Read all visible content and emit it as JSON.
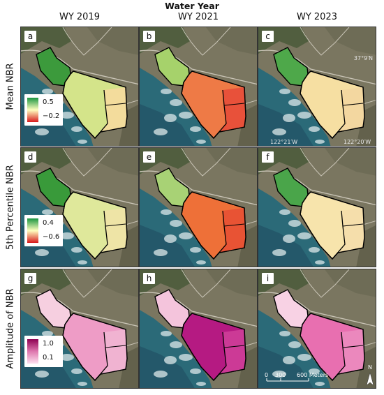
{
  "super_title": "Water Year",
  "columns": [
    "WY 2019",
    "WY 2021",
    "WY 2023"
  ],
  "rows": [
    "Mean NBR",
    "5th Percentile NBR",
    "Amplitude of NBR"
  ],
  "panels": [
    {
      "letter": "a",
      "row": 0,
      "col": 0,
      "nw_color": "#3c9a3c",
      "main_color": "#d4e48a",
      "east_color": "#f3dc9c"
    },
    {
      "letter": "b",
      "row": 0,
      "col": 1,
      "nw_color": "#a6d26b",
      "main_color": "#ee7a46",
      "east_color": "#e8513a"
    },
    {
      "letter": "c",
      "row": 0,
      "col": 2,
      "nw_color": "#4ea84a",
      "main_color": "#f6dfa2",
      "east_color": "#f3d7a0"
    },
    {
      "letter": "d",
      "row": 1,
      "col": 0,
      "nw_color": "#399a3a",
      "main_color": "#dfe89b",
      "east_color": "#eee4a6"
    },
    {
      "letter": "e",
      "row": 1,
      "col": 1,
      "nw_color": "#a8d275",
      "main_color": "#ee7038",
      "east_color": "#e85334"
    },
    {
      "letter": "f",
      "row": 1,
      "col": 2,
      "nw_color": "#4aa54a",
      "main_color": "#f7e4ac",
      "east_color": "#f5deab"
    },
    {
      "letter": "g",
      "row": 2,
      "col": 0,
      "nw_color": "#f6cfe0",
      "main_color": "#ee9cc6",
      "east_color": "#f0b3d1"
    },
    {
      "letter": "h",
      "row": 2,
      "col": 1,
      "nw_color": "#f4c4dc",
      "main_color": "#b51a82",
      "east_color": "#cc3a96"
    },
    {
      "letter": "i",
      "row": 2,
      "col": 2,
      "nw_color": "#f8d2e4",
      "main_color": "#e86fb0",
      "east_color": "#eb88bd"
    }
  ],
  "legends": [
    {
      "row": 0,
      "max": "0.5",
      "min": "−0.2",
      "high_color": "#1a9641",
      "mid_color": "#ffffbf",
      "low_color": "#d7191c"
    },
    {
      "row": 1,
      "max": "0.4",
      "min": "−0.6",
      "high_color": "#1a9641",
      "mid_color": "#ffffbf",
      "low_color": "#d7191c"
    },
    {
      "row": 2,
      "max": "1.0",
      "min": "0.1",
      "high_color": "#8e0152",
      "mid_color": "#de77ae",
      "low_color": "#fde0ef"
    }
  ],
  "coords": {
    "lat": "37°9′N",
    "lon_left": "122°21′W",
    "lon_right": "122°20′W"
  },
  "scale_bar": {
    "tick0": "0",
    "tick1": "300",
    "tick2": "600 Meters"
  },
  "north_label": "N",
  "colors": {
    "ocean": "#2b6a78",
    "ocean_deep": "#24586a",
    "land": "#7a7660",
    "veg": "#4a5a3a",
    "road": "#c9c4b6",
    "surf": "#dce8ea",
    "outline": "#000000"
  }
}
